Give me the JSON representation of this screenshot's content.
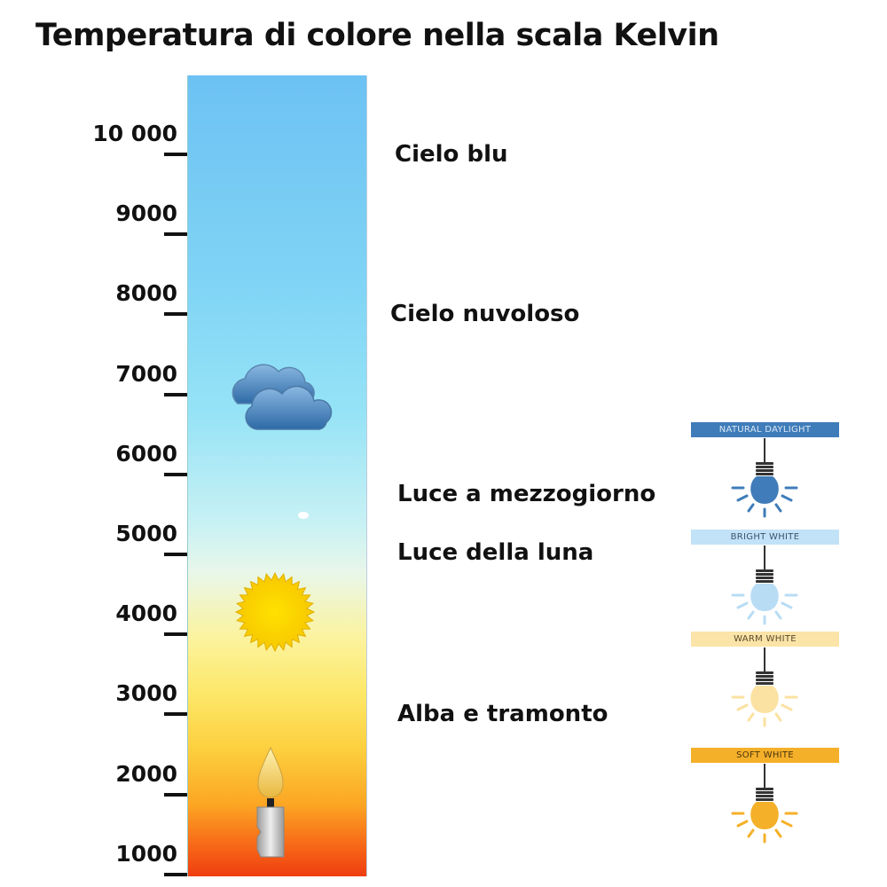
{
  "title": "Temperatura di colore nella scala Kelvin",
  "scale": {
    "ticks": [
      {
        "value": 10000,
        "label": "10 000"
      },
      {
        "value": 9000,
        "label": "9000"
      },
      {
        "value": 8000,
        "label": "8000"
      },
      {
        "value": 7000,
        "label": "7000"
      },
      {
        "value": 6000,
        "label": "6000"
      },
      {
        "value": 5000,
        "label": "5000"
      },
      {
        "value": 4000,
        "label": "4000"
      },
      {
        "value": 3000,
        "label": "3000"
      },
      {
        "value": 2000,
        "label": "2000"
      },
      {
        "value": 1000,
        "label": "1000"
      }
    ]
  },
  "descriptions": [
    {
      "label": "Cielo blu",
      "kelvin": 9950
    },
    {
      "label": "Cielo nuvoloso",
      "kelvin": 7950
    },
    {
      "label": "Luce a mezzogiorno",
      "kelvin": 5700
    },
    {
      "label": "Luce della luna",
      "kelvin": 4970
    },
    {
      "label": "Alba e tramonto",
      "kelvin": 2950
    }
  ],
  "icons": [
    "cloud-icon",
    "sun-icon",
    "moon-dot-icon",
    "candle-icon"
  ],
  "bulbs": [
    {
      "label": "NATURAL DAYLIGHT",
      "band_color": "#3f7cb9",
      "text_color": "#dbe8f5",
      "bulb_color": "#3f7cb9"
    },
    {
      "label": "BRIGHT WHITE",
      "band_color": "#c2e2f7",
      "text_color": "#3b5670",
      "bulb_color": "#b8dcf4"
    },
    {
      "label": "WARM WHITE",
      "band_color": "#fbe4a8",
      "text_color": "#5a4a2a",
      "bulb_color": "#fbe2a2"
    },
    {
      "label": "SOFT WHITE",
      "band_color": "#f5b029",
      "text_color": "#4a3410",
      "bulb_color": "#f5b029"
    }
  ]
}
